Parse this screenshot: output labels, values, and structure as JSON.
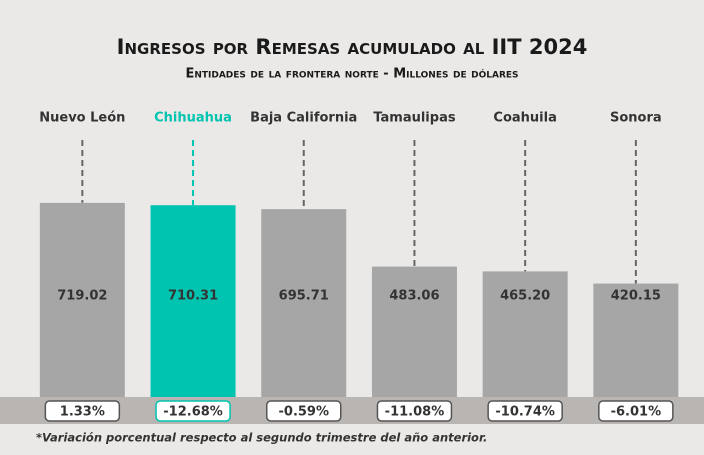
{
  "chart_data": {
    "type": "bar",
    "title": "Ingresos por Remesas acumulado al IIT 2024",
    "subtitle": "Entidades de la frontera norte - Millones de dólares",
    "categories": [
      "Nuevo León",
      "Chihuahua",
      "Baja California",
      "Tamaulipas",
      "Coahuila",
      "Sonora"
    ],
    "values": [
      719.02,
      710.31,
      695.71,
      483.06,
      465.2,
      420.15
    ],
    "value_labels": [
      "719.02",
      "710.31",
      "695.71",
      "483.06",
      "465.20",
      "420.15"
    ],
    "variation": [
      1.33,
      -12.68,
      -0.59,
      -11.08,
      -10.74,
      -6.01
    ],
    "variation_labels": [
      "1.33%",
      "-12.68%",
      "-0.59%",
      "-11.08%",
      "-10.74%",
      "-6.01%"
    ],
    "footnote": "*Variación porcentual respecto al segundo trimestre del año anterior.",
    "color": "#a6a6a6",
    "highlight_color": "#00c4b0",
    "highlight_index": 1
  }
}
